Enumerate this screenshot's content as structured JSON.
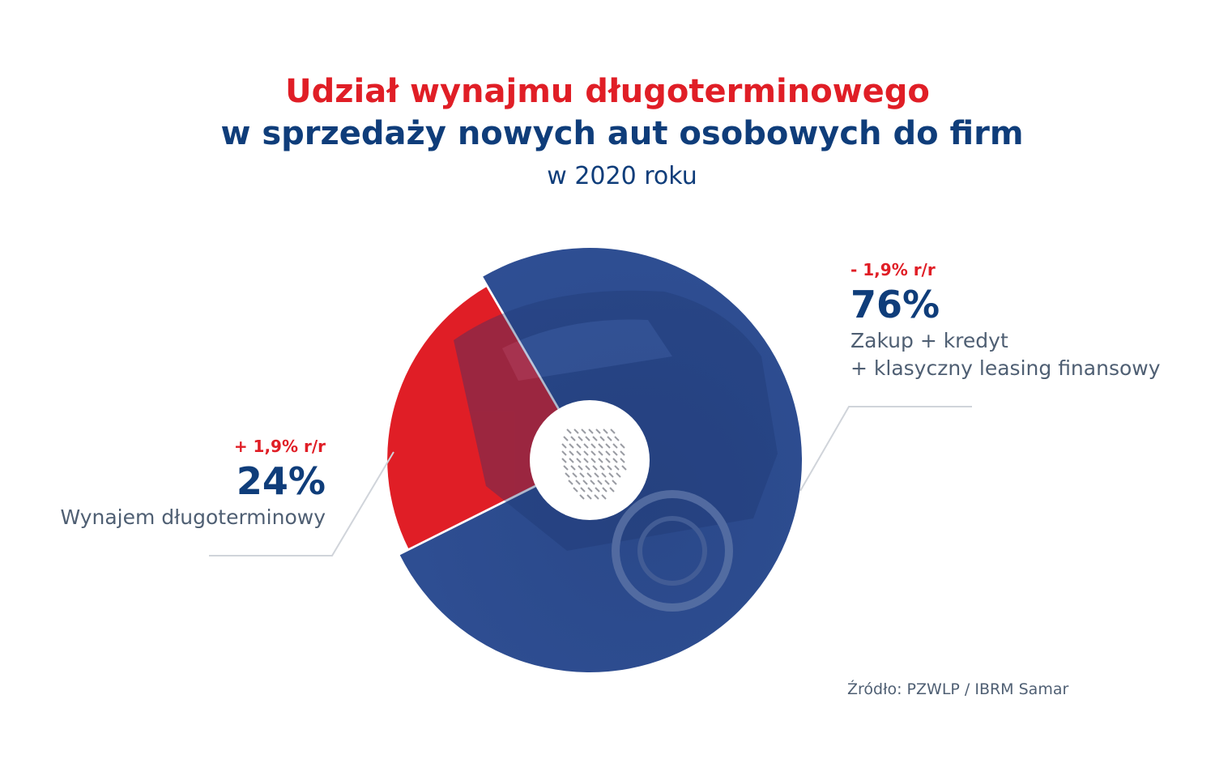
{
  "chart_data": {
    "type": "pie",
    "style": "donut",
    "title_line1": "Udział wynajmu długoterminowego",
    "title_line2": "w sprzedaży nowych aut osobowych do firm",
    "subtitle": "w 2020 roku",
    "source": "Źródło: PZWLP / IBRM Samar",
    "colors": {
      "accent_red": "#e01e26",
      "navy": "#0f3d7a",
      "pie_blue": "#2c4b8f",
      "leader_line": "#d0d4da",
      "text_gray": "#4f5f73"
    },
    "slices": [
      {
        "value": 76,
        "label": "76%",
        "change": "- 1,9% r/r",
        "description": [
          "Zakup + kredyt",
          "+ klasyczny leasing finansowy"
        ],
        "color": "#2c4b8f"
      },
      {
        "value": 24,
        "label": "24%",
        "change": "+ 1,9% r/r",
        "description": [
          "Wynajem długoterminowy"
        ],
        "color": "#e01e26"
      }
    ]
  }
}
